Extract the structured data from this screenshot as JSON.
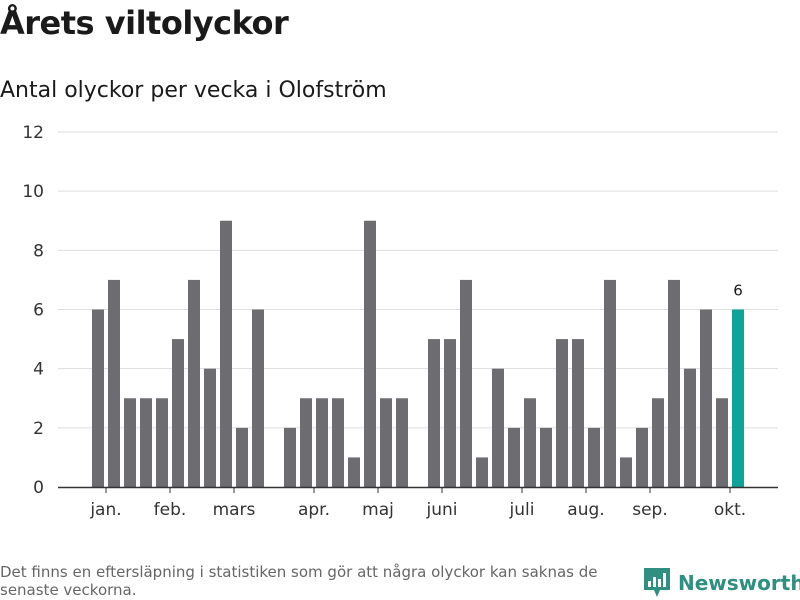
{
  "title": "Årets viltolyckor",
  "subtitle": "Antal olyckor per vecka i Olofström",
  "footnote": "Det finns en eftersläpning i statistiken som gör att några olyckor kan saknas de senaste veckorna.",
  "brand": {
    "name": "Newsworthy",
    "logo_icon": "chart-bars-icon"
  },
  "colors": {
    "bar": "#6d6c70",
    "highlight": "#10a39a",
    "grid": "#dddddd",
    "axis": "#333333",
    "brand": "#2f8f80"
  },
  "chart_data": {
    "type": "bar",
    "ylim": [
      0,
      12
    ],
    "yticks": [
      "0",
      "2",
      "4",
      "6",
      "8",
      "10",
      "12"
    ],
    "grid": true,
    "values": [
      6,
      7,
      3,
      3,
      3,
      5,
      7,
      4,
      9,
      2,
      6,
      null,
      2,
      3,
      3,
      3,
      1,
      9,
      3,
      3,
      null,
      5,
      5,
      7,
      1,
      4,
      2,
      3,
      2,
      5,
      5,
      2,
      7,
      1,
      2,
      3,
      7,
      4,
      6,
      3,
      6
    ],
    "highlight_index": 40,
    "highlight_label": "6",
    "month_labels": [
      {
        "label": "jan.",
        "at": 0.5
      },
      {
        "label": "feb.",
        "at": 4.5
      },
      {
        "label": "mars",
        "at": 8.5
      },
      {
        "label": "apr.",
        "at": 13.5
      },
      {
        "label": "maj",
        "at": 17.5
      },
      {
        "label": "juni",
        "at": 21.5
      },
      {
        "label": "juli",
        "at": 26.5
      },
      {
        "label": "aug.",
        "at": 30.5
      },
      {
        "label": "sep.",
        "at": 34.5
      },
      {
        "label": "okt.",
        "at": 39.5
      }
    ]
  }
}
